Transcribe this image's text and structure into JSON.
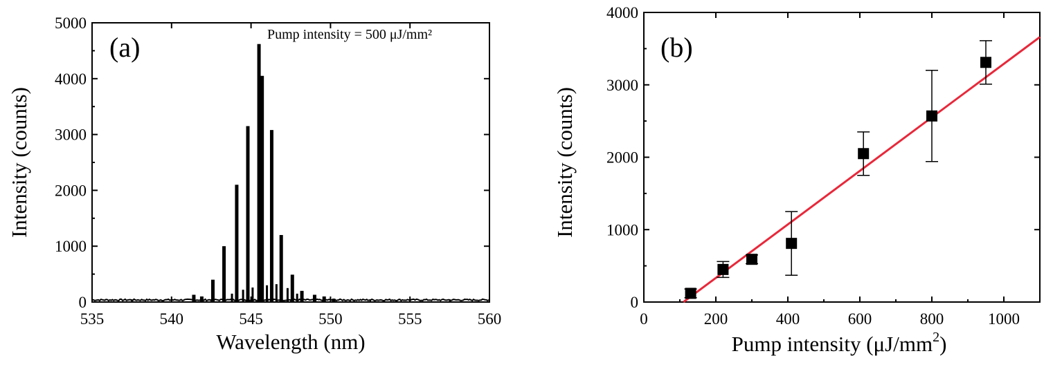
{
  "chart_data": [
    {
      "panel": "(a)",
      "type": "line",
      "annotation": "Pump intensity = 500 μJ/mm²",
      "xlabel": "Wavelength (nm)",
      "ylabel": "Intensity (counts)",
      "xlim": [
        535,
        560
      ],
      "ylim": [
        0,
        5000
      ],
      "xticks": [
        "535",
        "540",
        "545",
        "550",
        "555",
        "560"
      ],
      "yticks": [
        "0",
        "1000",
        "2000",
        "3000",
        "4000",
        "5000"
      ],
      "baseline_noise": 40,
      "peaks": [
        {
          "x": 541.4,
          "y": 130
        },
        {
          "x": 541.9,
          "y": 100
        },
        {
          "x": 542.6,
          "y": 400
        },
        {
          "x": 543.3,
          "y": 1000
        },
        {
          "x": 544.1,
          "y": 2100
        },
        {
          "x": 544.8,
          "y": 3150
        },
        {
          "x": 545.5,
          "y": 4620
        },
        {
          "x": 545.7,
          "y": 4050
        },
        {
          "x": 546.3,
          "y": 3080
        },
        {
          "x": 546.9,
          "y": 1200
        },
        {
          "x": 547.6,
          "y": 490
        },
        {
          "x": 548.2,
          "y": 200
        },
        {
          "x": 549.0,
          "y": 130
        },
        {
          "x": 549.6,
          "y": 100
        },
        {
          "x": 550.2,
          "y": 60
        }
      ],
      "minor_peaks": [
        {
          "x": 543.8,
          "y": 150
        },
        {
          "x": 544.5,
          "y": 220
        },
        {
          "x": 545.1,
          "y": 260
        },
        {
          "x": 546.0,
          "y": 300
        },
        {
          "x": 546.6,
          "y": 320
        },
        {
          "x": 547.3,
          "y": 250
        },
        {
          "x": 547.9,
          "y": 150
        }
      ]
    },
    {
      "panel": "(b)",
      "type": "scatter",
      "xlabel": "Pump intensity (μJ/mm",
      "xlabel_sup": "2",
      "xlabel_end": ")",
      "ylabel": "Intensity (counts)",
      "xlim": [
        0,
        1100
      ],
      "ylim": [
        0,
        4000
      ],
      "xticks": [
        "0",
        "200",
        "400",
        "600",
        "800",
        "1000"
      ],
      "yticks": [
        "0",
        "1000",
        "2000",
        "3000",
        "4000"
      ],
      "points": [
        {
          "x": 130,
          "y": 120,
          "err": 60
        },
        {
          "x": 220,
          "y": 450,
          "err": 110
        },
        {
          "x": 300,
          "y": 590,
          "err": 60
        },
        {
          "x": 410,
          "y": 810,
          "err": 440
        },
        {
          "x": 610,
          "y": 2050,
          "err": 300
        },
        {
          "x": 800,
          "y": 2570,
          "err": 630
        },
        {
          "x": 950,
          "y": 3310,
          "err": 300
        }
      ],
      "fit": {
        "x": [
          110,
          1100
        ],
        "y": [
          0,
          3660
        ],
        "color": "#e8283a"
      }
    }
  ]
}
